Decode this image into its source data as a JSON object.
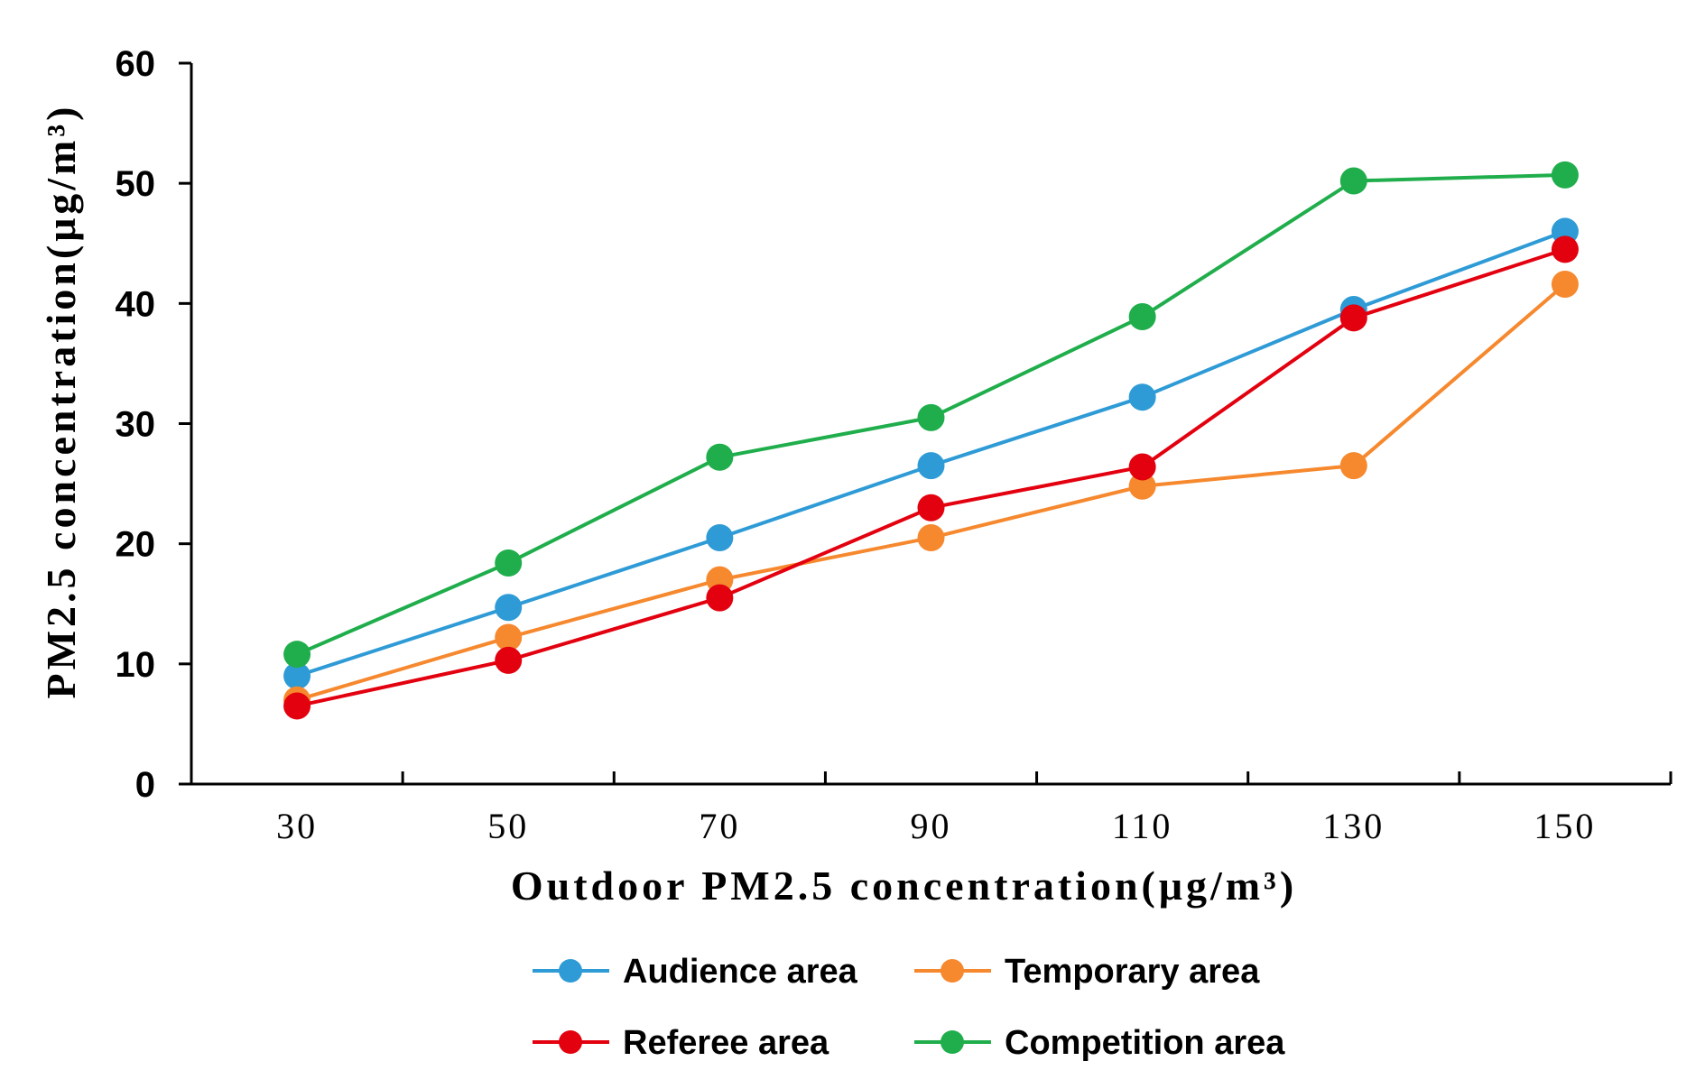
{
  "chart_data": {
    "type": "line",
    "title": "",
    "xlabel": "Outdoor PM2.5 concentration(μg/m³)",
    "ylabel": "PM2.5 concentration(μg/m³)",
    "x": [
      30,
      50,
      70,
      90,
      110,
      130,
      150
    ],
    "xlim": [
      20,
      160
    ],
    "ylim": [
      0,
      60
    ],
    "yticks": [
      0,
      10,
      20,
      30,
      40,
      50,
      60
    ],
    "xtick_labels": [
      "30",
      "50",
      "70",
      "90",
      "110",
      "130",
      "150"
    ],
    "grid": false,
    "legend_position": "bottom",
    "series": [
      {
        "name": "Audience area",
        "color": "#2E9BD6",
        "values": [
          9.0,
          14.7,
          20.5,
          26.5,
          32.2,
          39.5,
          46.0
        ]
      },
      {
        "name": "Temporary area",
        "color": "#F6882E",
        "values": [
          7.0,
          12.2,
          17.0,
          20.5,
          24.8,
          26.5,
          41.6
        ]
      },
      {
        "name": "Referee area",
        "color": "#E3000F",
        "values": [
          6.5,
          10.3,
          15.5,
          23.0,
          26.4,
          38.8,
          44.5
        ]
      },
      {
        "name": "Competition area",
        "color": "#1FAE4B",
        "values": [
          10.8,
          18.4,
          27.2,
          30.5,
          38.9,
          50.2,
          50.7
        ]
      }
    ]
  }
}
